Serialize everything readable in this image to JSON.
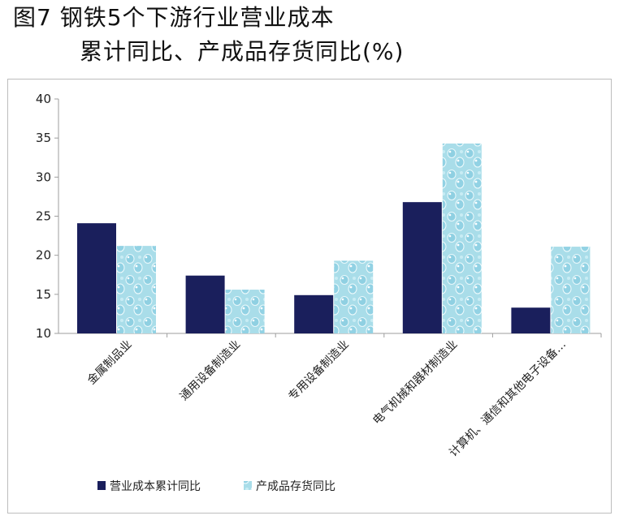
{
  "title": {
    "line1": "图7  钢铁5个下游行业营业成本",
    "line2": "累计同比、产成品存货同比(%)"
  },
  "colors": {
    "series1": "#1a1f5c",
    "series2": "#a9dde9",
    "series2_highlight": "#e3f6fa",
    "axis": "#9e9e9e"
  },
  "chart_data": {
    "type": "bar",
    "categories": [
      "金属制品业",
      "通用设备制造业",
      "专用设备制造业",
      "电气机械和器材制造业",
      "计算机、通信和其他电子设备…"
    ],
    "series": [
      {
        "name": "营业成本累计同比",
        "values": [
          24.1,
          17.4,
          14.9,
          26.8,
          13.3
        ]
      },
      {
        "name": "产成品存货同比",
        "values": [
          21.2,
          15.6,
          19.3,
          34.3,
          21.1
        ]
      }
    ],
    "ylim": [
      10,
      40
    ],
    "yticks": [
      10,
      15,
      20,
      25,
      30,
      35,
      40
    ],
    "grid": false,
    "legend_position": "bottom-left",
    "xlabel": "",
    "ylabel": ""
  }
}
